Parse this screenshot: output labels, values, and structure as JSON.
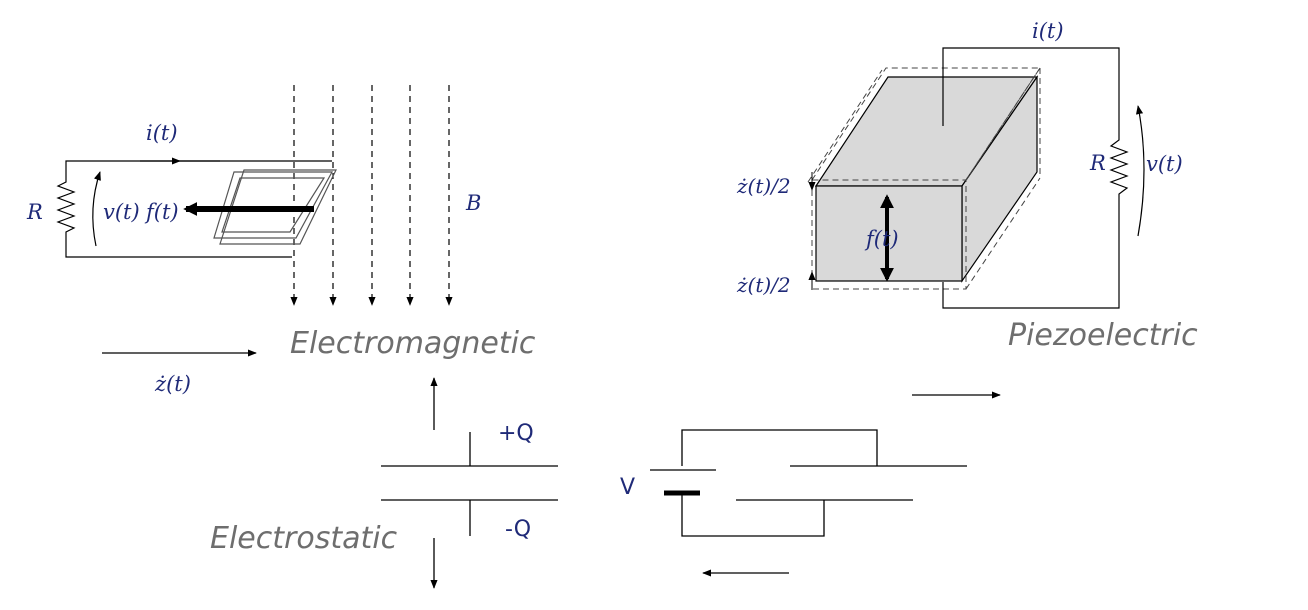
{
  "captions": {
    "electromagnetic": "Electromagnetic",
    "piezoelectric": "Piezoelectric",
    "electrostatic": "Electrostatic"
  },
  "electromagnetic": {
    "current": "i(t)",
    "resistor": "R",
    "voltage": "v(t)",
    "force": "f(t)",
    "field": "B",
    "velocity": "ż(t)"
  },
  "piezoelectric": {
    "current": "i(t)",
    "resistor": "R",
    "voltage": "v(t)",
    "force": "f(t)",
    "half_velocity_top": "ż(t)/2",
    "half_velocity_bottom": "ż(t)/2"
  },
  "electrostatic": {
    "plus_charge": "+Q",
    "minus_charge": "-Q",
    "voltage": "V"
  },
  "colors": {
    "math_text": "#1f2a78",
    "caption_text": "#6e6e6e",
    "block_fill": "#d9d9d9"
  }
}
